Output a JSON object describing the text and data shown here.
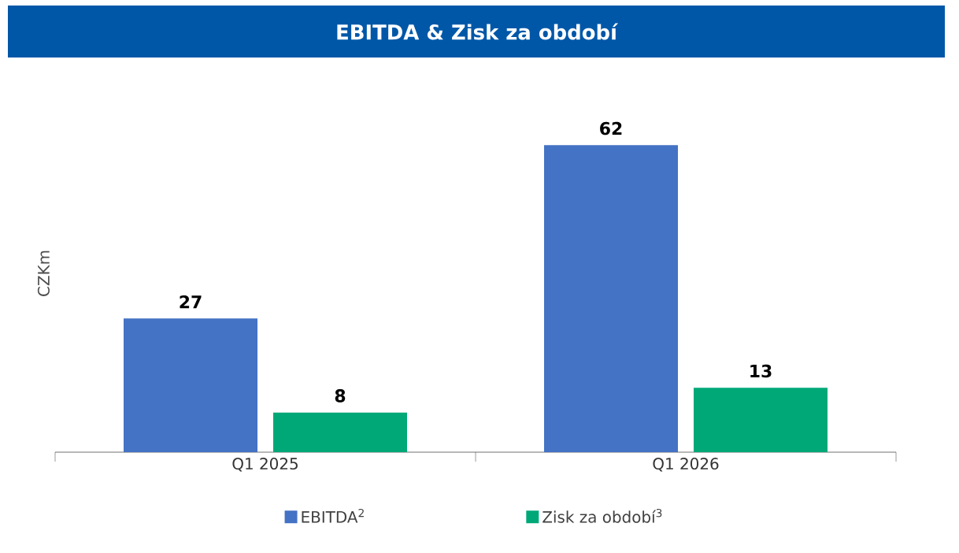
{
  "chart_data": {
    "type": "bar",
    "title": "EBITDA & Zisk za období",
    "ylabel": "CZKm",
    "categories": [
      "Q1 2025",
      "Q1 2026"
    ],
    "series": [
      {
        "name": "EBITDA$^{2}$",
        "color": "#4472c4",
        "values": [
          27,
          62
        ]
      },
      {
        "name": "Zisk za období$^{3}$",
        "color": "#00a878",
        "values": [
          8,
          13
        ]
      }
    ],
    "data_labels": true,
    "legend": "bottom"
  }
}
